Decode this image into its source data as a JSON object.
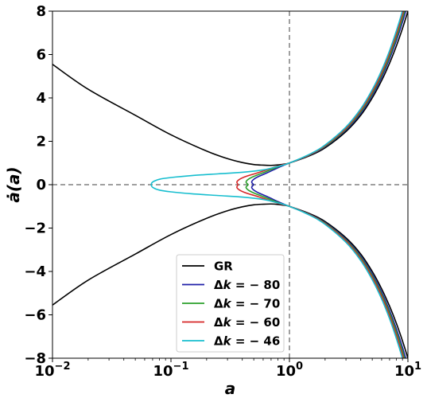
{
  "chart_data": {
    "type": "line",
    "xlabel": "a",
    "ylabel": "ȧ(a)",
    "xscale": "log",
    "xlim": [
      0.01,
      10
    ],
    "ylim": [
      -8,
      8
    ],
    "grid": false,
    "legend_position": "bottom-center",
    "x_ticks": [
      {
        "value": 0.01,
        "base": "10",
        "exp": "−2"
      },
      {
        "value": 0.1,
        "base": "10",
        "exp": "−1"
      },
      {
        "value": 1,
        "base": "10",
        "exp": "0"
      },
      {
        "value": 10,
        "base": "10",
        "exp": "1"
      }
    ],
    "y_ticks": [
      {
        "value": -8,
        "label": "−8"
      },
      {
        "value": -6,
        "label": "−6"
      },
      {
        "value": -4,
        "label": "−4"
      },
      {
        "value": -2,
        "label": "−2"
      },
      {
        "value": 0,
        "label": "0"
      },
      {
        "value": 2,
        "label": "2"
      },
      {
        "value": 4,
        "label": "4"
      },
      {
        "value": 6,
        "label": "6"
      },
      {
        "value": 8,
        "label": "8"
      }
    ],
    "reference_lines": [
      {
        "axis": "x",
        "value": 1,
        "style": "dashed",
        "color": "#808080"
      },
      {
        "axis": "y",
        "value": 0,
        "style": "dashed",
        "color": "#808080"
      }
    ],
    "series": [
      {
        "name": "GR",
        "color": "#000000",
        "branches": [
          {
            "x": [
              0.01,
              0.02,
              0.05,
              0.1,
              0.2,
              0.3,
              0.4,
              0.5,
              0.6,
              0.7,
              0.8,
              0.9,
              1.0,
              1.5,
              2,
              3,
              4,
              5,
              6,
              7,
              8,
              9,
              10
            ],
            "y": [
              5.55,
              4.4,
              3.2,
              2.3,
              1.55,
              1.2,
              1.02,
              0.93,
              0.9,
              0.89,
              0.91,
              0.95,
              1.0,
              1.35,
              1.7,
              2.45,
              3.2,
              4.0,
              4.8,
              5.6,
              6.4,
              7.2,
              8.0
            ]
          },
          {
            "x": [
              0.01,
              0.02,
              0.05,
              0.1,
              0.2,
              0.3,
              0.4,
              0.5,
              0.6,
              0.7,
              0.8,
              0.9,
              1.0,
              1.5,
              2,
              3,
              4,
              5,
              6,
              7,
              8,
              9,
              10
            ],
            "y": [
              -5.55,
              -4.4,
              -3.2,
              -2.3,
              -1.55,
              -1.2,
              -1.02,
              -0.93,
              -0.9,
              -0.89,
              -0.91,
              -0.95,
              -1.0,
              -1.35,
              -1.7,
              -2.45,
              -3.2,
              -4.0,
              -4.8,
              -5.6,
              -6.4,
              -7.2,
              -8.0
            ]
          }
        ]
      },
      {
        "name": "Δk = − 80",
        "legend_prefix": "Δ",
        "legend_var": "k",
        "legend_suffix": " = − 80",
        "color": "#1f1fa8",
        "branches": [
          {
            "x": [
              0.5,
              0.48,
              0.5,
              0.55,
              0.65,
              0.8,
              0.9,
              1.0,
              1.5,
              2,
              3,
              4,
              5,
              6,
              7,
              8,
              9,
              10
            ],
            "y": [
              0.0,
              0.12,
              0.25,
              0.38,
              0.55,
              0.78,
              0.9,
              1.0,
              1.38,
              1.75,
              2.52,
              3.3,
              4.12,
              4.95,
              5.8,
              6.65,
              7.5,
              8.35
            ]
          },
          {
            "x": [
              0.5,
              0.48,
              0.5,
              0.55,
              0.65,
              0.8,
              0.9,
              1.0,
              1.5,
              2,
              3,
              4,
              5,
              6,
              7,
              8,
              9,
              10
            ],
            "y": [
              0.0,
              -0.12,
              -0.25,
              -0.38,
              -0.55,
              -0.78,
              -0.9,
              -1.0,
              -1.38,
              -1.75,
              -2.52,
              -3.3,
              -4.12,
              -4.95,
              -5.8,
              -6.65,
              -7.5,
              -8.35
            ]
          }
        ]
      },
      {
        "name": "Δk = − 70",
        "legend_prefix": "Δ",
        "legend_var": "k",
        "legend_suffix": " = − 70",
        "color": "#2ca02c",
        "branches": [
          {
            "x": [
              0.45,
              0.43,
              0.45,
              0.5,
              0.6,
              0.75,
              0.9,
              1.0,
              1.5,
              2,
              3,
              4,
              5,
              6,
              7,
              8,
              9,
              10
            ],
            "y": [
              0.0,
              0.12,
              0.25,
              0.38,
              0.55,
              0.76,
              0.92,
              1.0,
              1.39,
              1.77,
              2.56,
              3.36,
              4.2,
              5.05,
              5.92,
              6.8,
              7.68,
              8.55
            ]
          },
          {
            "x": [
              0.45,
              0.43,
              0.45,
              0.5,
              0.6,
              0.75,
              0.9,
              1.0,
              1.5,
              2,
              3,
              4,
              5,
              6,
              7,
              8,
              9,
              10
            ],
            "y": [
              0.0,
              -0.12,
              -0.25,
              -0.38,
              -0.55,
              -0.76,
              -0.92,
              -1.0,
              -1.39,
              -1.77,
              -2.56,
              -3.36,
              -4.2,
              -5.05,
              -5.92,
              -6.8,
              -7.68,
              -8.55
            ]
          }
        ]
      },
      {
        "name": "Δk = − 60",
        "legend_prefix": "Δ",
        "legend_var": "k",
        "legend_suffix": " = − 60",
        "color": "#d62728",
        "branches": [
          {
            "x": [
              0.37,
              0.36,
              0.38,
              0.43,
              0.55,
              0.7,
              0.85,
              1.0,
              1.5,
              2,
              3,
              4,
              5,
              6,
              7,
              8,
              9,
              10
            ],
            "y": [
              0.0,
              0.12,
              0.25,
              0.38,
              0.56,
              0.75,
              0.9,
              1.0,
              1.4,
              1.8,
              2.6,
              3.43,
              4.28,
              5.15,
              6.05,
              6.95,
              7.85,
              8.75
            ]
          },
          {
            "x": [
              0.37,
              0.36,
              0.38,
              0.43,
              0.55,
              0.7,
              0.85,
              1.0,
              1.5,
              2,
              3,
              4,
              5,
              6,
              7,
              8,
              9,
              10
            ],
            "y": [
              0.0,
              -0.12,
              -0.25,
              -0.38,
              -0.56,
              -0.75,
              -0.9,
              -1.0,
              -1.4,
              -1.8,
              -2.6,
              -3.43,
              -4.28,
              -5.15,
              -6.05,
              -6.95,
              -7.85,
              -8.75
            ]
          }
        ]
      },
      {
        "name": "Δk = − 46",
        "legend_prefix": "Δ",
        "legend_var": "k",
        "legend_suffix": " = − 46",
        "color": "#17becf",
        "branches": [
          {
            "x": [
              0.068,
              0.07,
              0.08,
              0.1,
              0.15,
              0.25,
              0.4,
              0.6,
              0.8,
              1.0,
              1.5,
              2,
              3,
              4,
              5,
              6,
              7,
              8,
              9,
              10
            ],
            "y": [
              0.0,
              0.12,
              0.25,
              0.33,
              0.42,
              0.5,
              0.57,
              0.68,
              0.84,
              1.0,
              1.42,
              1.83,
              2.66,
              3.5,
              4.38,
              5.27,
              6.18,
              7.1,
              8.02,
              8.95
            ]
          },
          {
            "x": [
              0.068,
              0.07,
              0.08,
              0.1,
              0.15,
              0.25,
              0.4,
              0.6,
              0.8,
              1.0,
              1.5,
              2,
              3,
              4,
              5,
              6,
              7,
              8,
              9,
              10
            ],
            "y": [
              0.0,
              -0.12,
              -0.25,
              -0.33,
              -0.42,
              -0.5,
              -0.57,
              -0.68,
              -0.84,
              -1.0,
              -1.42,
              -1.83,
              -2.66,
              -3.5,
              -4.38,
              -5.27,
              -6.18,
              -7.1,
              -8.02,
              -8.95
            ]
          }
        ]
      }
    ]
  }
}
